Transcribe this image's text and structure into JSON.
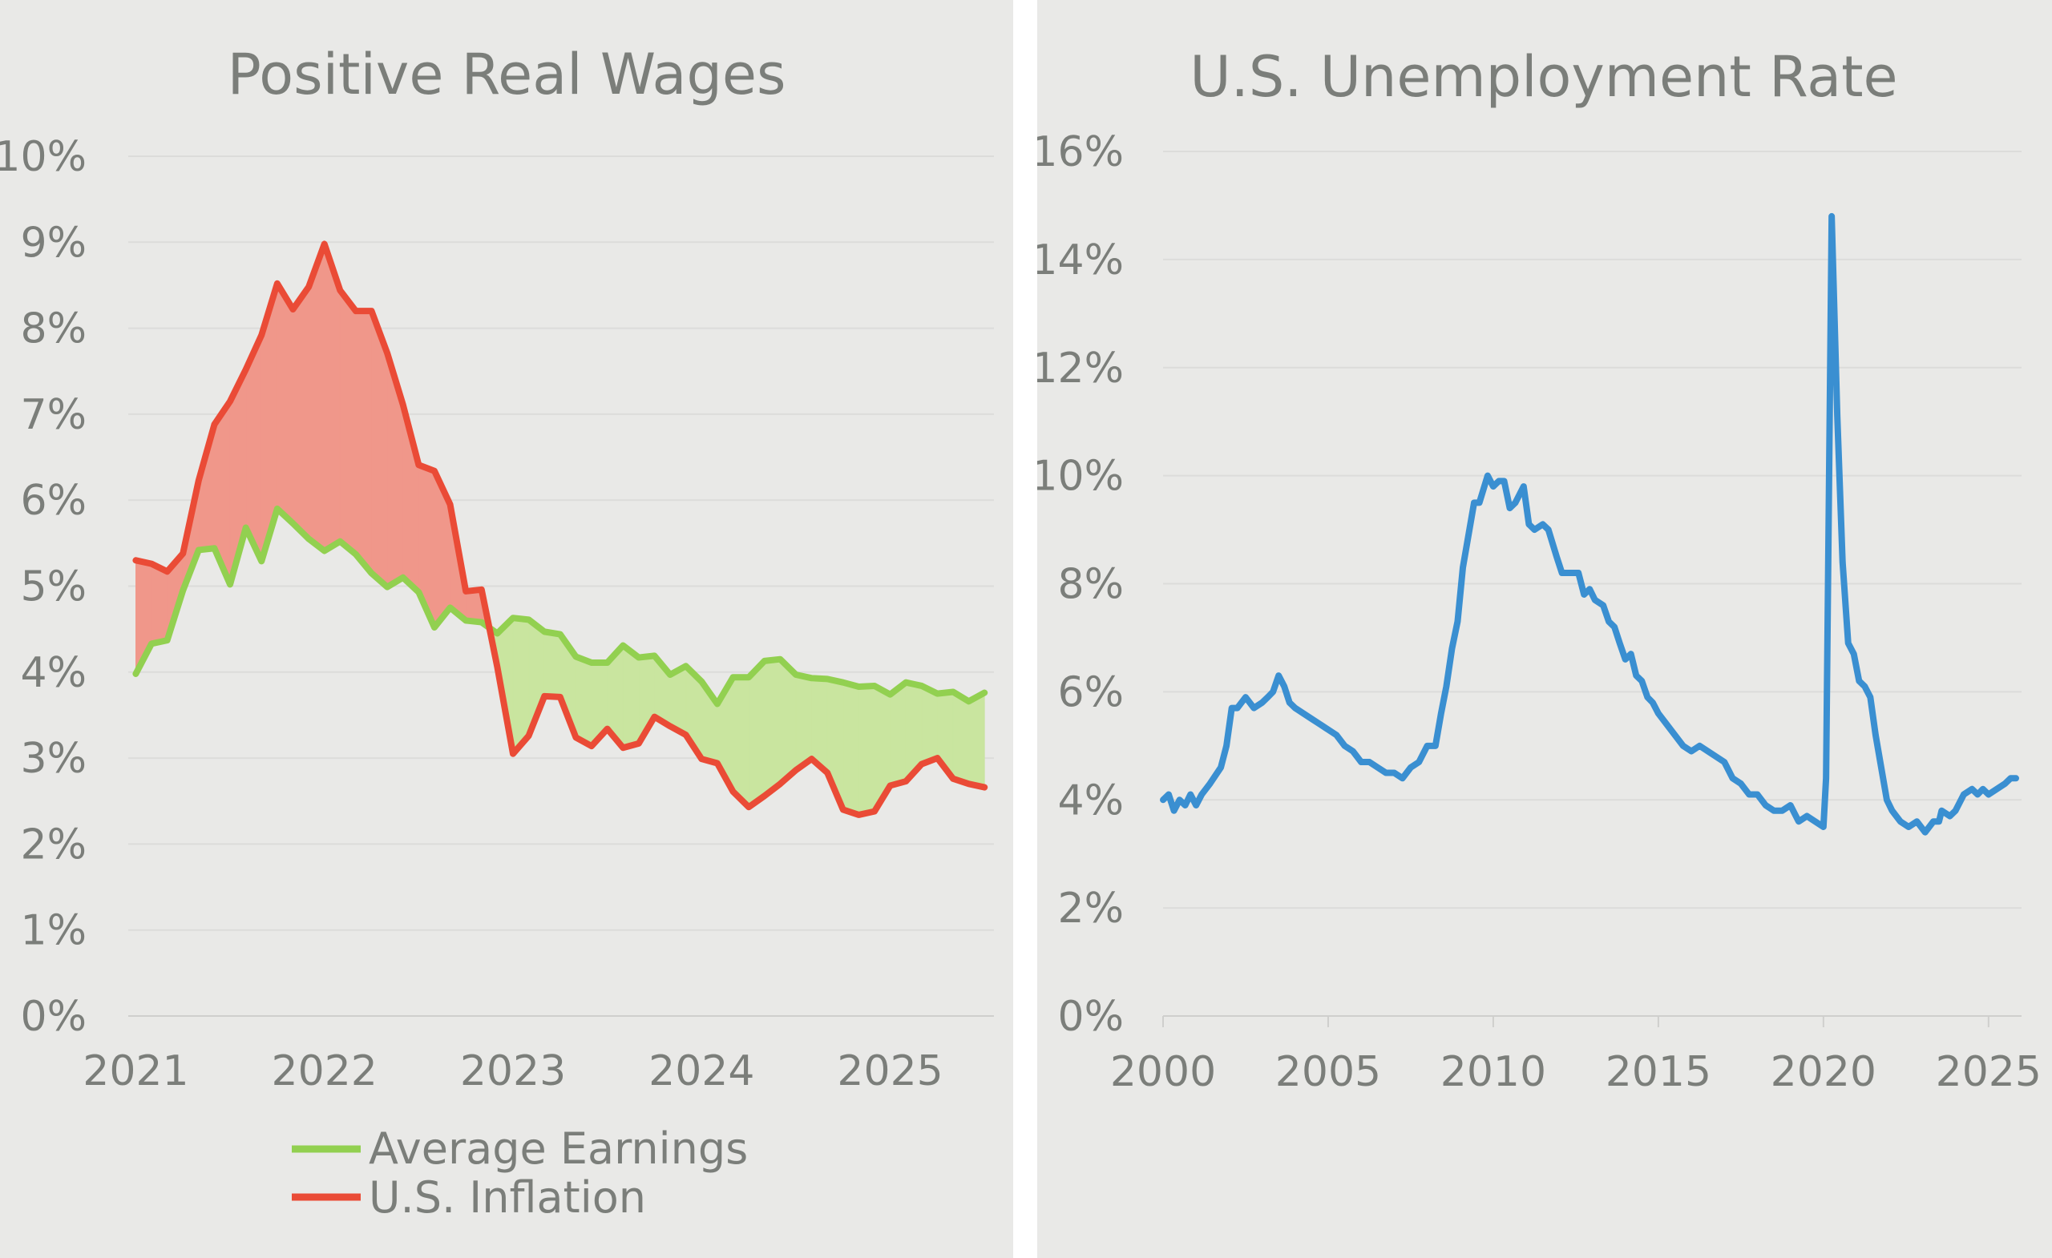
{
  "chart_data": [
    {
      "type": "line",
      "title": "Positive Real Wages",
      "xlabel": "",
      "ylabel": "",
      "x_start": 2021.0,
      "x_step_months": 1,
      "x_ticks": [
        "2021",
        "2022",
        "2023",
        "2024",
        "2025"
      ],
      "x_tick_values": [
        2021,
        2022,
        2023,
        2024,
        2025
      ],
      "y_ticks": [
        "0%",
        "1%",
        "2%",
        "3%",
        "4%",
        "5%",
        "6%",
        "7%",
        "8%",
        "9%",
        "10%"
      ],
      "y_tick_values": [
        0,
        1,
        2,
        3,
        4,
        5,
        6,
        7,
        8,
        9,
        10
      ],
      "xlim": [
        2020.96,
        2025.55
      ],
      "ylim": [
        0,
        10
      ],
      "grid": true,
      "legend_position": "bottom",
      "fill_between": true,
      "fill_colors": {
        "inflation_above": "#f0978a",
        "earnings_above": "#c9e59f"
      },
      "series": [
        {
          "name": "Average Earnings",
          "color": "#92d050",
          "values": [
            3.98,
            4.33,
            4.37,
            4.95,
            5.42,
            5.44,
            5.02,
            5.68,
            5.29,
            5.9,
            5.73,
            5.55,
            5.41,
            5.52,
            5.37,
            5.15,
            4.99,
            5.1,
            4.93,
            4.52,
            4.75,
            4.6,
            4.58,
            4.45,
            4.63,
            4.61,
            4.47,
            4.44,
            4.18,
            4.11,
            4.11,
            4.31,
            4.17,
            4.19,
            3.97,
            4.07,
            3.89,
            3.63,
            3.94,
            3.94,
            4.13,
            4.15,
            3.97,
            3.93,
            3.92,
            3.88,
            3.83,
            3.84,
            3.74,
            3.88,
            3.84,
            3.75,
            3.77,
            3.66,
            3.76
          ]
        },
        {
          "name": "U.S. Inflation",
          "color": "#ea4b36",
          "values": [
            5.3,
            5.26,
            5.17,
            5.38,
            6.23,
            6.88,
            7.15,
            7.52,
            7.92,
            8.52,
            8.22,
            8.48,
            8.98,
            8.44,
            8.2,
            8.2,
            7.71,
            7.11,
            6.41,
            6.34,
            5.95,
            4.94,
            4.96,
            4.06,
            3.05,
            3.26,
            3.72,
            3.71,
            3.24,
            3.14,
            3.34,
            3.12,
            3.17,
            3.48,
            3.37,
            3.27,
            2.99,
            2.94,
            2.61,
            2.43,
            2.56,
            2.7,
            2.86,
            2.99,
            2.83,
            2.4,
            2.34,
            2.38,
            2.68,
            2.73,
            2.93,
            3.0,
            2.76,
            2.7,
            2.66
          ]
        }
      ]
    },
    {
      "type": "line",
      "title": "U.S. Unemployment Rate",
      "xlabel": "",
      "ylabel": "",
      "x_ticks": [
        "2000",
        "2005",
        "2010",
        "2015",
        "2020",
        "2025"
      ],
      "x_tick_values": [
        2000,
        2005,
        2010,
        2015,
        2020,
        2025
      ],
      "y_ticks": [
        "0%",
        "2%",
        "4%",
        "6%",
        "8%",
        "10%",
        "12%",
        "14%",
        "16%"
      ],
      "y_tick_values": [
        0,
        2,
        4,
        6,
        8,
        10,
        12,
        14,
        16
      ],
      "xlim": [
        2000,
        2026
      ],
      "ylim": [
        0,
        16
      ],
      "grid": true,
      "series": [
        {
          "name": "",
          "color": "#3a8fd1",
          "points": [
            [
              2000.0,
              4.0
            ],
            [
              2000.17,
              4.1
            ],
            [
              2000.33,
              3.8
            ],
            [
              2000.5,
              4.0
            ],
            [
              2000.67,
              3.9
            ],
            [
              2000.83,
              4.1
            ],
            [
              2001.0,
              3.9
            ],
            [
              2001.17,
              4.1
            ],
            [
              2001.42,
              4.3
            ],
            [
              2001.75,
              4.6
            ],
            [
              2001.92,
              5.0
            ],
            [
              2002.08,
              5.7
            ],
            [
              2002.25,
              5.7
            ],
            [
              2002.5,
              5.9
            ],
            [
              2002.75,
              5.7
            ],
            [
              2003.0,
              5.8
            ],
            [
              2003.17,
              5.9
            ],
            [
              2003.33,
              6.0
            ],
            [
              2003.5,
              6.3
            ],
            [
              2003.67,
              6.1
            ],
            [
              2003.83,
              5.8
            ],
            [
              2004.0,
              5.7
            ],
            [
              2004.25,
              5.6
            ],
            [
              2004.5,
              5.5
            ],
            [
              2004.75,
              5.4
            ],
            [
              2005.0,
              5.3
            ],
            [
              2005.25,
              5.2
            ],
            [
              2005.5,
              5.0
            ],
            [
              2005.75,
              4.9
            ],
            [
              2006.0,
              4.7
            ],
            [
              2006.25,
              4.7
            ],
            [
              2006.5,
              4.6
            ],
            [
              2006.75,
              4.5
            ],
            [
              2007.0,
              4.5
            ],
            [
              2007.25,
              4.4
            ],
            [
              2007.5,
              4.6
            ],
            [
              2007.75,
              4.7
            ],
            [
              2008.0,
              5.0
            ],
            [
              2008.25,
              5.0
            ],
            [
              2008.42,
              5.6
            ],
            [
              2008.58,
              6.1
            ],
            [
              2008.75,
              6.8
            ],
            [
              2008.92,
              7.3
            ],
            [
              2009.08,
              8.3
            ],
            [
              2009.25,
              8.9
            ],
            [
              2009.42,
              9.5
            ],
            [
              2009.58,
              9.5
            ],
            [
              2009.83,
              10.0
            ],
            [
              2010.0,
              9.8
            ],
            [
              2010.17,
              9.9
            ],
            [
              2010.33,
              9.9
            ],
            [
              2010.5,
              9.4
            ],
            [
              2010.67,
              9.5
            ],
            [
              2010.92,
              9.8
            ],
            [
              2011.08,
              9.1
            ],
            [
              2011.25,
              9.0
            ],
            [
              2011.5,
              9.1
            ],
            [
              2011.67,
              9.0
            ],
            [
              2011.92,
              8.5
            ],
            [
              2012.08,
              8.2
            ],
            [
              2012.33,
              8.2
            ],
            [
              2012.58,
              8.2
            ],
            [
              2012.75,
              7.8
            ],
            [
              2012.92,
              7.9
            ],
            [
              2013.08,
              7.7
            ],
            [
              2013.33,
              7.6
            ],
            [
              2013.5,
              7.3
            ],
            [
              2013.67,
              7.2
            ],
            [
              2013.83,
              6.9
            ],
            [
              2014.0,
              6.6
            ],
            [
              2014.17,
              6.7
            ],
            [
              2014.33,
              6.3
            ],
            [
              2014.5,
              6.2
            ],
            [
              2014.67,
              5.9
            ],
            [
              2014.83,
              5.8
            ],
            [
              2015.0,
              5.6
            ],
            [
              2015.25,
              5.4
            ],
            [
              2015.5,
              5.2
            ],
            [
              2015.75,
              5.0
            ],
            [
              2016.0,
              4.9
            ],
            [
              2016.25,
              5.0
            ],
            [
              2016.5,
              4.9
            ],
            [
              2016.75,
              4.8
            ],
            [
              2017.0,
              4.7
            ],
            [
              2017.25,
              4.4
            ],
            [
              2017.5,
              4.3
            ],
            [
              2017.75,
              4.1
            ],
            [
              2018.0,
              4.1
            ],
            [
              2018.25,
              3.9
            ],
            [
              2018.5,
              3.8
            ],
            [
              2018.75,
              3.8
            ],
            [
              2019.0,
              3.9
            ],
            [
              2019.25,
              3.6
            ],
            [
              2019.5,
              3.7
            ],
            [
              2019.75,
              3.6
            ],
            [
              2020.0,
              3.5
            ],
            [
              2020.08,
              4.4
            ],
            [
              2020.25,
              14.8
            ],
            [
              2020.42,
              11.1
            ],
            [
              2020.58,
              8.4
            ],
            [
              2020.75,
              6.9
            ],
            [
              2020.92,
              6.7
            ],
            [
              2021.08,
              6.2
            ],
            [
              2021.25,
              6.1
            ],
            [
              2021.42,
              5.9
            ],
            [
              2021.58,
              5.2
            ],
            [
              2021.75,
              4.6
            ],
            [
              2021.92,
              4.0
            ],
            [
              2022.08,
              3.8
            ],
            [
              2022.33,
              3.6
            ],
            [
              2022.58,
              3.5
            ],
            [
              2022.83,
              3.6
            ],
            [
              2023.08,
              3.4
            ],
            [
              2023.33,
              3.6
            ],
            [
              2023.5,
              3.6
            ],
            [
              2023.58,
              3.8
            ],
            [
              2023.83,
              3.7
            ],
            [
              2024.0,
              3.8
            ],
            [
              2024.25,
              4.1
            ],
            [
              2024.5,
              4.2
            ],
            [
              2024.67,
              4.1
            ],
            [
              2024.83,
              4.2
            ],
            [
              2025.0,
              4.1
            ],
            [
              2025.25,
              4.2
            ],
            [
              2025.5,
              4.3
            ],
            [
              2025.67,
              4.4
            ],
            [
              2025.83,
              4.4
            ]
          ]
        }
      ]
    }
  ]
}
